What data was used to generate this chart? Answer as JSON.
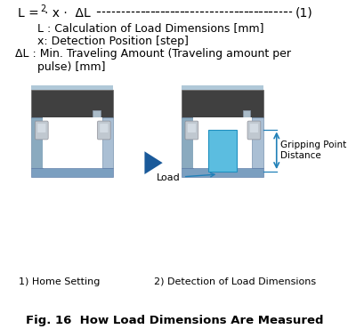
{
  "title": "Fig. 16  How Load Dimensions Are Measured",
  "label1": "1) Home Setting",
  "label2": "2) Detection of Load Dimensions",
  "label_load": "Load",
  "label_gripping": "Gripping Point\nDistance",
  "bg_color": "#ffffff",
  "text_color": "#000000",
  "arrow_blue": "#2080b8",
  "load_blue": "#5bbde0",
  "dark_bar": "#404040",
  "bar_top_strip": "#8ab0c8",
  "clamp_blue": "#8aabcc",
  "clamp_blue_right": "#aabfd8",
  "clamp_bottom": "#7090b8",
  "bolt_gray": "#b8c4cc",
  "bolt_edge": "#808898",
  "triangle_blue": "#1a5a9a"
}
